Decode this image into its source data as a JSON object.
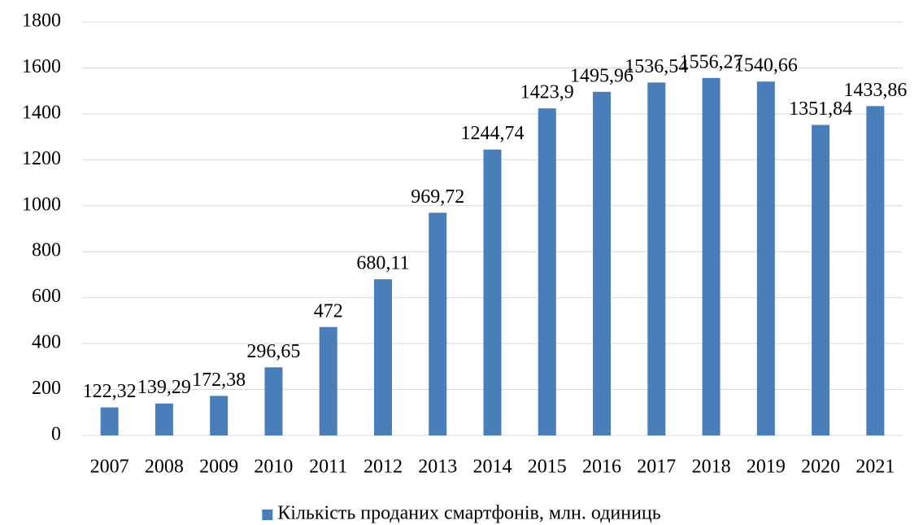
{
  "chart_data": {
    "type": "bar",
    "categories": [
      "2007",
      "2008",
      "2009",
      "2010",
      "2011",
      "2012",
      "2013",
      "2014",
      "2015",
      "2016",
      "2017",
      "2018",
      "2019",
      "2020",
      "2021"
    ],
    "series": [
      {
        "name": "Кількість проданих смартфонів, млн. одиниць",
        "color": "#4a7ebb",
        "values": [
          122.32,
          139.29,
          172.38,
          296.65,
          472,
          680.11,
          969.72,
          1244.74,
          1423.9,
          1495.96,
          1536.54,
          1556.27,
          1540.66,
          1351.84,
          1433.86
        ],
        "value_labels": [
          "122,32",
          "139,29",
          "172,38",
          "296,65",
          "472",
          "680,11",
          "969,72",
          "1244,74",
          "1423,9",
          "1495,96",
          "1536,54",
          "1556,27",
          "1540,66",
          "1351,84",
          "1433,86"
        ]
      }
    ],
    "ylim": [
      0,
      1800
    ],
    "yticks": [
      0,
      200,
      400,
      600,
      800,
      1000,
      1200,
      1400,
      1600,
      1800
    ],
    "grid": true,
    "legend": "bottom"
  }
}
